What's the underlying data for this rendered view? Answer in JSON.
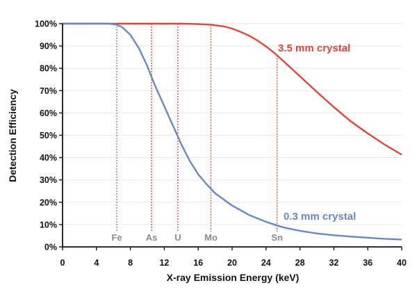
{
  "chart_data": {
    "type": "line",
    "title": "",
    "xlabel": "X-ray Emission Energy (keV)",
    "ylabel": "Detection Efficiency",
    "xlim": [
      0,
      40
    ],
    "ylim": [
      0,
      100
    ],
    "x_ticks": [
      0,
      4,
      8,
      12,
      16,
      20,
      24,
      28,
      32,
      36,
      40
    ],
    "y_ticks": [
      0,
      10,
      20,
      30,
      40,
      50,
      60,
      70,
      80,
      90,
      100
    ],
    "x_tick_labels": [
      "0",
      "4",
      "8",
      "12",
      "16",
      "20",
      "24",
      "28",
      "32",
      "36",
      "40"
    ],
    "y_tick_labels": [
      "0%",
      "10%",
      "20%",
      "30%",
      "40%",
      "50%",
      "60%",
      "70%",
      "80%",
      "90%",
      "100%"
    ],
    "series": [
      {
        "name": "3.5 mm crystal",
        "color": "#e0453a",
        "x": [
          0,
          10,
          14,
          16,
          17.5,
          19,
          20,
          21,
          22,
          23,
          24,
          25,
          26,
          28,
          30,
          32,
          34,
          36,
          38,
          40
        ],
        "y": [
          100,
          100,
          100,
          99.8,
          99.5,
          98.8,
          97.8,
          96.3,
          94.6,
          92.4,
          89.8,
          86.8,
          83.4,
          76.4,
          69.4,
          62.6,
          56.2,
          50.8,
          45.8,
          41.3
        ]
      },
      {
        "name": "0.3 mm crystal",
        "color": "#6a86c4",
        "x": [
          0,
          5.5,
          6.4,
          7,
          8,
          9,
          10,
          10.5,
          11,
          12,
          13,
          13.6,
          14,
          15,
          16,
          17,
          17.5,
          18,
          20,
          22,
          24,
          25.3,
          26,
          28,
          30,
          32,
          34,
          36,
          38,
          40
        ],
        "y": [
          100,
          100,
          99.5,
          98.5,
          95,
          89,
          81,
          76,
          71.5,
          63,
          54.5,
          49.5,
          46,
          38.5,
          32.5,
          28,
          26,
          24,
          18.5,
          14.3,
          11.2,
          9.6,
          8.8,
          7.2,
          6,
          5.2,
          4.6,
          4.1,
          3.6,
          3.3
        ]
      }
    ],
    "reference_lines": [
      {
        "label": "Fe",
        "x": 6.4,
        "color": "#6a86c4"
      },
      {
        "label": "As",
        "x": 10.5,
        "color": "#e0453a"
      },
      {
        "label": "U",
        "x": 13.6,
        "color": "#e0453a"
      },
      {
        "label": "Mo",
        "x": 17.5,
        "color": "#e0453a"
      },
      {
        "label": "Sn",
        "x": 25.3,
        "color": "#e0453a"
      }
    ]
  }
}
